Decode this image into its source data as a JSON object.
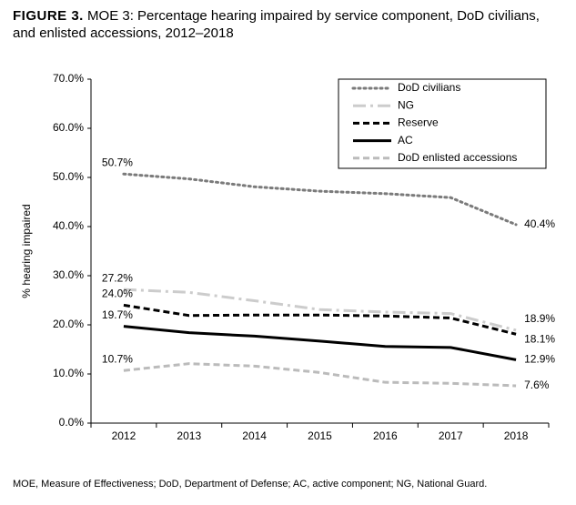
{
  "figure_label": "FIGURE 3.",
  "chart_data": {
    "type": "line",
    "title": "MOE 3: Percentage hearing impaired by service component, DoD civilians, and enlisted accessions, 2012–2018",
    "y_label": "% hearing impaired",
    "categories": [
      "2012",
      "2013",
      "2014",
      "2015",
      "2016",
      "2017",
      "2018"
    ],
    "ylim": [
      0,
      70
    ],
    "yticks": [
      {
        "value": 0,
        "label": "0.0%"
      },
      {
        "value": 10,
        "label": "10.0%"
      },
      {
        "value": 20,
        "label": "20.0%"
      },
      {
        "value": 30,
        "label": "30.0%"
      },
      {
        "value": 40,
        "label": "40.0%"
      },
      {
        "value": 50,
        "label": "50.0%"
      },
      {
        "value": 60,
        "label": "60.0%"
      },
      {
        "value": 70,
        "label": "70.0%"
      }
    ],
    "grid": false,
    "legend": "upper right",
    "series": [
      {
        "name": "DoD civilians",
        "color": "#7a7a7a",
        "dash": "dotted",
        "values": [
          50.7,
          49.7,
          48.1,
          47.2,
          46.7,
          45.9,
          40.4
        ],
        "value_labels": [
          "50.7%",
          null,
          null,
          null,
          null,
          null,
          "40.4%"
        ]
      },
      {
        "name": "NG",
        "color": "#cccccc",
        "dash": "dashdot",
        "values": [
          27.2,
          26.6,
          24.9,
          23.1,
          22.6,
          22.3,
          18.9
        ],
        "value_labels": [
          "27.2%",
          null,
          null,
          null,
          null,
          null,
          "18.9%"
        ]
      },
      {
        "name": "Reserve",
        "color": "#000000",
        "dash": "dashed",
        "values": [
          24.0,
          21.9,
          22.0,
          22.0,
          21.8,
          21.4,
          18.1
        ],
        "value_labels": [
          "24.0%",
          null,
          null,
          null,
          null,
          null,
          "18.1%"
        ]
      },
      {
        "name": "AC",
        "color": "#000000",
        "dash": "solid",
        "values": [
          19.7,
          18.4,
          17.7,
          16.7,
          15.6,
          15.4,
          12.9
        ],
        "value_labels": [
          "19.7%",
          null,
          null,
          null,
          null,
          null,
          "12.9%"
        ]
      },
      {
        "name": "DoD enlisted accessions",
        "color": "#bbbbbb",
        "dash": "dashed",
        "values": [
          10.7,
          12.1,
          11.6,
          10.3,
          8.3,
          8.1,
          7.6
        ],
        "value_labels": [
          "10.7%",
          null,
          null,
          null,
          null,
          null,
          "7.6%"
        ]
      }
    ]
  },
  "footnote": "MOE, Measure of Effectiveness; DoD, Department of Defense; AC, active component; NG, National Guard."
}
